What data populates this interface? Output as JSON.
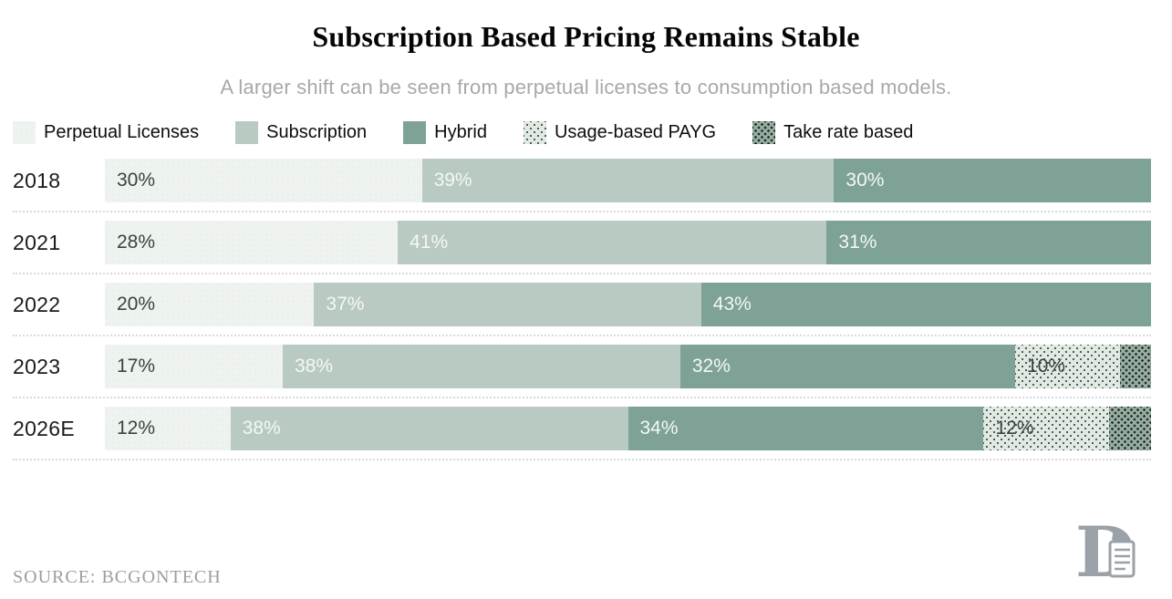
{
  "header": {
    "title": "Subscription Based Pricing Remains Stable",
    "subtitle": "A larger shift can be seen from perpetual licenses to consumption based models."
  },
  "legend": {
    "items": [
      {
        "key": "perpetual",
        "label": "Perpetual Licenses"
      },
      {
        "key": "subscription",
        "label": "Subscription"
      },
      {
        "key": "hybrid",
        "label": "Hybrid"
      },
      {
        "key": "payg",
        "label": "Usage-based PAYG"
      },
      {
        "key": "take",
        "label": "Take rate based"
      }
    ]
  },
  "chart_data": {
    "type": "bar",
    "subtype": "horizontal-stacked",
    "title": "Subscription Based Pricing Remains Stable",
    "subtitle": "A larger shift can be seen from perpetual licenses to consumption based models.",
    "value_unit": "%",
    "xlim": [
      0,
      100
    ],
    "grid": false,
    "legend_position": "top",
    "categories": [
      "2018",
      "2021",
      "2022",
      "2023",
      "2026E"
    ],
    "series": [
      {
        "name": "Perpetual Licenses",
        "key": "perpetual",
        "values": [
          30,
          28,
          20,
          17,
          12
        ]
      },
      {
        "name": "Subscription",
        "key": "subscription",
        "values": [
          39,
          41,
          37,
          38,
          38
        ]
      },
      {
        "name": "Hybrid",
        "key": "hybrid",
        "values": [
          30,
          31,
          43,
          32,
          34
        ]
      },
      {
        "name": "Usage-based PAYG",
        "key": "payg",
        "values": [
          0,
          0,
          0,
          10,
          12
        ]
      },
      {
        "name": "Take rate based",
        "key": "take",
        "values": [
          0,
          0,
          0,
          3,
          4
        ],
        "note": "segments visible but unlabeled; values estimated as remainder to 100%"
      }
    ],
    "rows": [
      {
        "year": "2018",
        "segments": [
          {
            "key": "perpetual",
            "value": 30,
            "label": "30%"
          },
          {
            "key": "subscription",
            "value": 39,
            "label": "39%"
          },
          {
            "key": "hybrid",
            "value": 30,
            "label": "30%"
          }
        ]
      },
      {
        "year": "2021",
        "segments": [
          {
            "key": "perpetual",
            "value": 28,
            "label": "28%"
          },
          {
            "key": "subscription",
            "value": 41,
            "label": "41%"
          },
          {
            "key": "hybrid",
            "value": 31,
            "label": "31%"
          }
        ]
      },
      {
        "year": "2022",
        "segments": [
          {
            "key": "perpetual",
            "value": 20,
            "label": "20%"
          },
          {
            "key": "subscription",
            "value": 37,
            "label": "37%"
          },
          {
            "key": "hybrid",
            "value": 43,
            "label": "43%"
          }
        ]
      },
      {
        "year": "2023",
        "segments": [
          {
            "key": "perpetual",
            "value": 17,
            "label": "17%"
          },
          {
            "key": "subscription",
            "value": 38,
            "label": "38%"
          },
          {
            "key": "hybrid",
            "value": 32,
            "label": "32%"
          },
          {
            "key": "payg",
            "value": 10,
            "label": "10%"
          },
          {
            "key": "take",
            "value": 3,
            "label": ""
          }
        ]
      },
      {
        "year": "2026E",
        "segments": [
          {
            "key": "perpetual",
            "value": 12,
            "label": "12%"
          },
          {
            "key": "subscription",
            "value": 38,
            "label": "38%"
          },
          {
            "key": "hybrid",
            "value": 34,
            "label": "34%"
          },
          {
            "key": "payg",
            "value": 12,
            "label": "12%"
          },
          {
            "key": "take",
            "value": 4,
            "label": ""
          }
        ]
      }
    ],
    "colors": {
      "perpetual_bg": "#eff3f0",
      "subscription_bg": "#b8cac2",
      "hybrid_bg": "#7ea296",
      "payg_bg": "#e0eae3",
      "payg_dot": "#4e5f55",
      "take_bg": "#98aea2",
      "take_dot": "#223029",
      "label_dark": "#3b423f",
      "label_light": "#f5f8f6",
      "separator": "#d9d9d9"
    }
  },
  "footer": {
    "source": "SOURCE: BCGONTECH"
  }
}
